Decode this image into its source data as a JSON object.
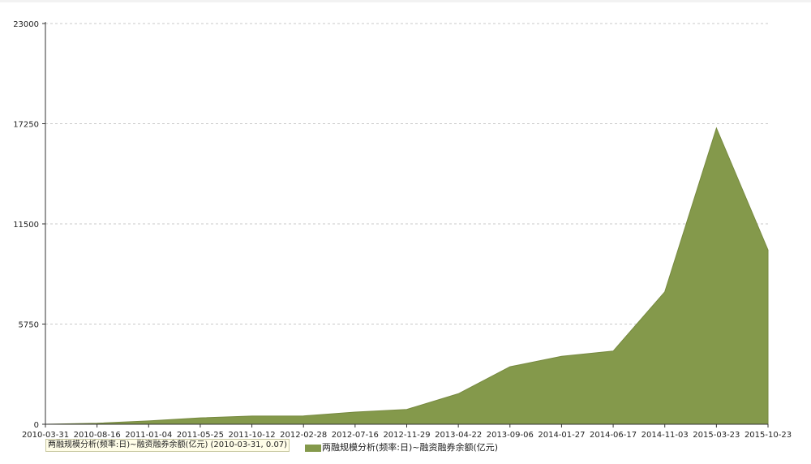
{
  "chart_data": {
    "type": "area",
    "series": [
      {
        "name": "两融规模分析(频率:日)~融资融券余额(亿元)",
        "color": "#84994b",
        "x": [
          "2010-03-31",
          "2010-08-16",
          "2011-01-04",
          "2011-05-25",
          "2011-10-12",
          "2012-02-28",
          "2012-07-16",
          "2012-11-29",
          "2013-04-22",
          "2013-09-06",
          "2014-01-27",
          "2014-06-17",
          "2014-11-03",
          "2015-03-23",
          "2015-10-23"
        ],
        "values": [
          0.07,
          60,
          190,
          370,
          470,
          480,
          700,
          850,
          1750,
          3300,
          3900,
          4200,
          7600,
          17000,
          10000
        ]
      }
    ],
    "x_ticks": [
      "2010-03-31",
      "2010-08-16",
      "2011-01-04",
      "2011-05-25",
      "2011-10-12",
      "2012-02-28",
      "2012-07-16",
      "2012-11-29",
      "2013-04-22",
      "2013-09-06",
      "2014-01-27",
      "2014-06-17",
      "2014-11-03",
      "2015-03-23",
      "2015-10-23"
    ],
    "y_ticks": [
      "0",
      "5750",
      "11500",
      "17250",
      "23000"
    ],
    "ylim": [
      0,
      23000
    ],
    "grid": true,
    "legend_position": "bottom",
    "tooltip": "两融规模分析(频率:日)~融资融券余额(亿元) (2010-03-31, 0.07)"
  }
}
